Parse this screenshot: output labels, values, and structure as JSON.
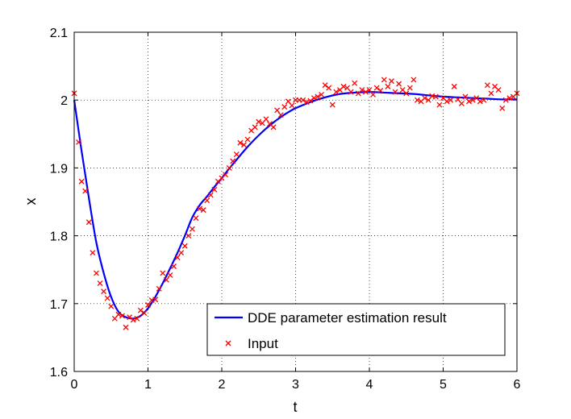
{
  "chart_data": {
    "type": "line",
    "title": "",
    "xlabel": "t",
    "ylabel": "x",
    "xlim": [
      0,
      6
    ],
    "ylim": [
      1.6,
      2.1
    ],
    "xticks": [
      0,
      1,
      2,
      3,
      4,
      5,
      6
    ],
    "yticks": [
      1.6,
      1.7,
      1.8,
      1.9,
      2.0,
      2.1
    ],
    "xtick_labels": [
      "0",
      "1",
      "2",
      "3",
      "4",
      "5",
      "6"
    ],
    "ytick_labels": [
      "1.6",
      "1.7",
      "1.8",
      "1.9",
      "2",
      "2.1"
    ],
    "grid": true,
    "legend_position": "bottom-right",
    "series": [
      {
        "name": "DDE parameter estimation result",
        "kind": "line",
        "color": "#0000ff",
        "x": [
          0,
          0.1,
          0.2,
          0.3,
          0.4,
          0.5,
          0.6,
          0.7,
          0.8,
          0.9,
          1.0,
          1.1,
          1.2,
          1.3,
          1.4,
          1.5,
          1.6,
          1.7,
          1.8,
          1.9,
          2.0,
          2.1,
          2.2,
          2.3,
          2.4,
          2.5,
          2.6,
          2.7,
          2.8,
          2.9,
          3.0,
          3.2,
          3.4,
          3.6,
          3.8,
          4.0,
          4.2,
          4.4,
          4.6,
          4.8,
          5.0,
          5.2,
          5.4,
          5.6,
          5.8,
          6.0
        ],
        "y": [
          2.0,
          1.925,
          1.855,
          1.79,
          1.745,
          1.71,
          1.688,
          1.68,
          1.678,
          1.682,
          1.693,
          1.71,
          1.73,
          1.752,
          1.775,
          1.8,
          1.827,
          1.845,
          1.858,
          1.872,
          1.885,
          1.899,
          1.912,
          1.925,
          1.937,
          1.948,
          1.958,
          1.967,
          1.975,
          1.982,
          1.988,
          1.997,
          2.004,
          2.009,
          2.011,
          2.012,
          2.011,
          2.01,
          2.009,
          2.007,
          2.005,
          2.004,
          2.003,
          2.002,
          2.001,
          2.001
        ]
      },
      {
        "name": "Input",
        "kind": "scatter",
        "color": "#ff0000",
        "x": [
          0.0,
          0.06,
          0.1,
          0.15,
          0.2,
          0.25,
          0.3,
          0.35,
          0.4,
          0.45,
          0.5,
          0.55,
          0.6,
          0.65,
          0.7,
          0.75,
          0.8,
          0.85,
          0.9,
          0.95,
          1.0,
          1.05,
          1.1,
          1.15,
          1.2,
          1.25,
          1.3,
          1.35,
          1.4,
          1.45,
          1.5,
          1.55,
          1.6,
          1.65,
          1.7,
          1.75,
          1.8,
          1.85,
          1.9,
          1.95,
          2.0,
          2.05,
          2.1,
          2.15,
          2.2,
          2.25,
          2.3,
          2.35,
          2.4,
          2.45,
          2.5,
          2.55,
          2.6,
          2.65,
          2.7,
          2.75,
          2.8,
          2.85,
          2.9,
          2.95,
          3.0,
          3.05,
          3.1,
          3.15,
          3.2,
          3.25,
          3.3,
          3.35,
          3.4,
          3.45,
          3.5,
          3.55,
          3.6,
          3.65,
          3.7,
          3.75,
          3.8,
          3.85,
          3.9,
          3.95,
          4.0,
          4.05,
          4.1,
          4.15,
          4.2,
          4.25,
          4.3,
          4.35,
          4.4,
          4.45,
          4.5,
          4.55,
          4.6,
          4.65,
          4.7,
          4.75,
          4.8,
          4.85,
          4.9,
          4.95,
          5.0,
          5.05,
          5.1,
          5.15,
          5.2,
          5.25,
          5.3,
          5.35,
          5.4,
          5.45,
          5.5,
          5.55,
          5.6,
          5.65,
          5.7,
          5.75,
          5.8,
          5.85,
          5.9,
          5.95,
          6.0
        ],
        "y": [
          2.01,
          1.938,
          1.88,
          1.866,
          1.82,
          1.775,
          1.745,
          1.73,
          1.718,
          1.708,
          1.696,
          1.678,
          1.684,
          1.682,
          1.665,
          1.68,
          1.676,
          1.678,
          1.69,
          1.686,
          1.698,
          1.705,
          1.706,
          1.722,
          1.745,
          1.735,
          1.742,
          1.755,
          1.768,
          1.775,
          1.785,
          1.8,
          1.81,
          1.826,
          1.84,
          1.838,
          1.852,
          1.86,
          1.868,
          1.88,
          1.885,
          1.89,
          1.9,
          1.91,
          1.92,
          1.937,
          1.934,
          1.942,
          1.955,
          1.96,
          1.968,
          1.966,
          1.972,
          1.965,
          1.96,
          1.985,
          1.978,
          1.99,
          1.998,
          1.992,
          2.0,
          2.0,
          2.0,
          1.997,
          1.999,
          2.003,
          2.005,
          2.008,
          2.022,
          2.018,
          1.993,
          2.012,
          2.015,
          2.02,
          2.018,
          2.012,
          2.025,
          2.01,
          2.015,
          2.012,
          2.015,
          2.008,
          2.018,
          2.014,
          2.03,
          2.02,
          2.028,
          2.012,
          2.024,
          2.015,
          2.01,
          2.018,
          2.03,
          2.0,
          1.998,
          2.003,
          2.0,
          2.006,
          2.005,
          1.993,
          2.003,
          1.998,
          2.0,
          2.02,
          2.001,
          1.995,
          2.005,
          1.998,
          2.0,
          2.003,
          1.998,
          2.0,
          2.022,
          2.01,
          2.02,
          2.015,
          1.988,
          2.0,
          2.003,
          2.005,
          2.01
        ]
      }
    ]
  }
}
